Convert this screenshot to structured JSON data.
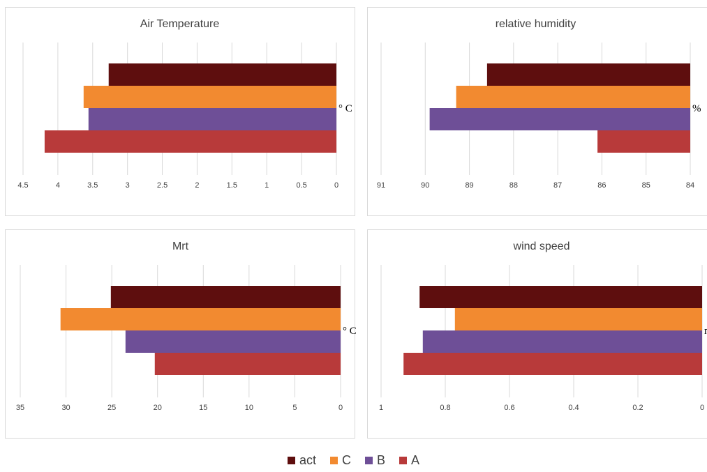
{
  "legend": [
    {
      "name": "act",
      "color": "#5e0e0e"
    },
    {
      "name": "C",
      "color": "#f28a30"
    },
    {
      "name": "B",
      "color": "#6e4f97"
    },
    {
      "name": "A",
      "color": "#b83a3a"
    }
  ],
  "chart_data": [
    {
      "type": "bar",
      "orientation": "horizontal",
      "reversed_axis": true,
      "title": "Air Temperature",
      "unit": "° C",
      "xlim": [
        0,
        4.5
      ],
      "ticks": [
        "4.5",
        "4",
        "3.5",
        "3",
        "2.5",
        "2",
        "1.5",
        "1",
        "0.5",
        "0"
      ],
      "grid": true,
      "series": [
        {
          "name": "act",
          "value": 3.27
        },
        {
          "name": "C",
          "value": 3.63
        },
        {
          "name": "B",
          "value": 3.56
        },
        {
          "name": "A",
          "value": 4.19
        }
      ]
    },
    {
      "type": "bar",
      "orientation": "horizontal",
      "reversed_axis": true,
      "title": "relative humidity",
      "unit": "%",
      "xlim": [
        84,
        91
      ],
      "ticks": [
        "91",
        "90",
        "89",
        "88",
        "87",
        "86",
        "85",
        "84"
      ],
      "grid": true,
      "series": [
        {
          "name": "act",
          "value": 88.6
        },
        {
          "name": "C",
          "value": 89.3
        },
        {
          "name": "B",
          "value": 89.9
        },
        {
          "name": "A",
          "value": 86.1
        }
      ]
    },
    {
      "type": "bar",
      "orientation": "horizontal",
      "reversed_axis": true,
      "title": "Mrt",
      "unit": "° C",
      "xlim": [
        0,
        35
      ],
      "ticks": [
        "35",
        "30",
        "25",
        "20",
        "15",
        "10",
        "5",
        "0"
      ],
      "grid": true,
      "series": [
        {
          "name": "act",
          "value": 25.1
        },
        {
          "name": "C",
          "value": 30.6
        },
        {
          "name": "B",
          "value": 23.5
        },
        {
          "name": "A",
          "value": 20.3
        }
      ]
    },
    {
      "type": "bar",
      "orientation": "horizontal",
      "reversed_axis": true,
      "title": "wind speed",
      "unit": "m",
      "xlim": [
        0,
        1
      ],
      "ticks": [
        "1",
        "0.8",
        "0.6",
        "0.4",
        "0.2",
        "0"
      ],
      "grid": true,
      "series": [
        {
          "name": "act",
          "value": 0.88
        },
        {
          "name": "C",
          "value": 0.77
        },
        {
          "name": "B",
          "value": 0.87
        },
        {
          "name": "A",
          "value": 0.93
        }
      ]
    }
  ]
}
